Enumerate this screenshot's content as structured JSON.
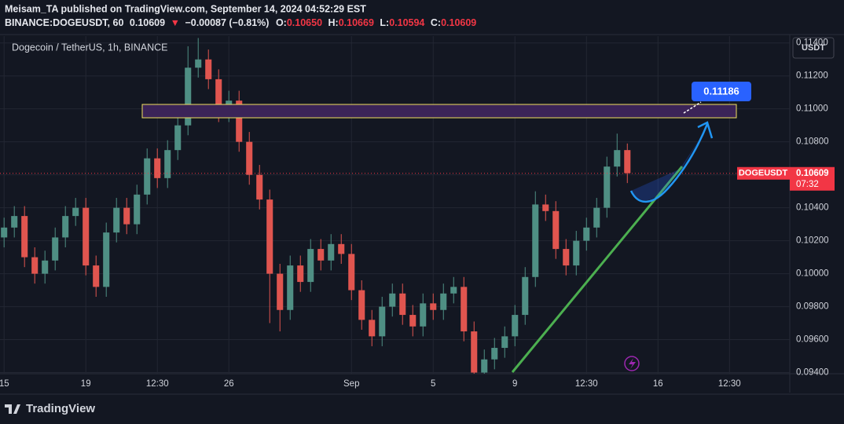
{
  "header": {
    "publisher": "Meisam_TA published on TradingView.com, September 14, 2024 04:52:29 EST",
    "symbol": "BINANCE:DOGEUSDT, 60",
    "price": "0.10609",
    "arrow": "▼",
    "change": "−0.00087 (−0.81%)",
    "open_label": "O:",
    "open": "0.10650",
    "high_label": "H:",
    "high": "0.10669",
    "low_label": "L:",
    "low": "0.10594",
    "close_label": "C:",
    "close": "0.10609"
  },
  "footer": {
    "logo": "TradingView"
  },
  "chart_data": {
    "type": "candlestick",
    "title": "Dogecoin / TetherUS, 1h, BINANCE",
    "currency": "USDT",
    "symbol_tag": "DOGEUSDT",
    "countdown": "07:32",
    "target_label": "0.11186",
    "last_price": {
      "value": 0.10609,
      "label": "0.10609"
    },
    "up_color": "#4f8f84",
    "down_color": "#e0554f",
    "grid": true,
    "xlim": [
      -0.4,
      76.9
    ],
    "ylim": [
      0.09393,
      0.11432
    ],
    "xticks": [
      {
        "value": 0,
        "label": "15"
      },
      {
        "value": 8,
        "label": "19"
      },
      {
        "value": 15,
        "label": "12:30"
      },
      {
        "value": 22,
        "label": "26"
      },
      {
        "value": 34,
        "label": "Sep"
      },
      {
        "value": 42,
        "label": "5"
      },
      {
        "value": 50,
        "label": "9"
      },
      {
        "value": 57,
        "label": "12:30"
      },
      {
        "value": 64,
        "label": "16"
      },
      {
        "value": 71,
        "label": "12:30"
      }
    ],
    "yticks": [
      {
        "value": 0.094,
        "label": "0.09400"
      },
      {
        "value": 0.096,
        "label": "0.09600"
      },
      {
        "value": 0.098,
        "label": "0.09800"
      },
      {
        "value": 0.1,
        "label": "0.10000"
      },
      {
        "value": 0.102,
        "label": "0.10200"
      },
      {
        "value": 0.104,
        "label": "0.10400"
      },
      {
        "value": 0.106,
        "label": "0.10600"
      },
      {
        "value": 0.108,
        "label": "0.10800"
      },
      {
        "value": 0.11,
        "label": "0.11000"
      },
      {
        "value": 0.112,
        "label": "0.11200"
      },
      {
        "value": 0.114,
        "label": "0.11400"
      }
    ],
    "open": [
      0.1022,
      0.1028,
      0.1035,
      0.101,
      0.1,
      0.1008,
      0.1022,
      0.1035,
      0.104,
      0.1005,
      0.0992,
      0.1025,
      0.104,
      0.103,
      0.1048,
      0.107,
      0.1058,
      0.1075,
      0.109,
      0.1125,
      0.113,
      0.1118,
      0.1098,
      0.1105,
      0.108,
      0.106,
      0.1045,
      0.1,
      0.0978,
      0.1005,
      0.0995,
      0.1015,
      0.1008,
      0.1018,
      0.1012,
      0.099,
      0.0972,
      0.0962,
      0.098,
      0.0988,
      0.0975,
      0.0968,
      0.0982,
      0.0978,
      0.0988,
      0.0992,
      0.0965,
      0.094,
      0.0948,
      0.0955,
      0.0962,
      0.0975,
      0.0998,
      0.1042,
      0.1038,
      0.1015,
      0.1005,
      0.102,
      0.1028,
      0.104,
      0.1065,
      0.1075
    ],
    "high": [
      0.1034,
      0.1041,
      0.1041,
      0.1016,
      0.1014,
      0.1028,
      0.1041,
      0.1046,
      0.1046,
      0.1011,
      0.1031,
      0.1046,
      0.1046,
      0.1054,
      0.1076,
      0.1076,
      0.1081,
      0.1096,
      0.1138,
      0.1143,
      0.1136,
      0.1124,
      0.1111,
      0.1111,
      0.1086,
      0.1066,
      0.1051,
      0.1006,
      0.1011,
      0.1011,
      0.1021,
      0.1021,
      0.1024,
      0.1024,
      0.1018,
      0.0996,
      0.0978,
      0.0986,
      0.0994,
      0.0994,
      0.0981,
      0.0988,
      0.0988,
      0.0994,
      0.0998,
      0.0998,
      0.0971,
      0.0954,
      0.0961,
      0.0968,
      0.0981,
      0.1004,
      0.105,
      0.1048,
      0.1044,
      0.1021,
      0.1026,
      0.1034,
      0.1046,
      0.1071,
      0.1085,
      0.1079
    ],
    "low": [
      0.1016,
      0.1022,
      0.1004,
      0.0994,
      0.0994,
      0.1002,
      0.1016,
      0.1029,
      0.0999,
      0.0986,
      0.0986,
      0.1019,
      0.1024,
      0.1024,
      0.1042,
      0.1052,
      0.1052,
      0.1069,
      0.1084,
      0.1119,
      0.1112,
      0.1092,
      0.1092,
      0.1074,
      0.1054,
      0.1039,
      0.097,
      0.0965,
      0.0972,
      0.0989,
      0.0989,
      0.1002,
      0.1002,
      0.1006,
      0.0984,
      0.0966,
      0.0956,
      0.0956,
      0.0974,
      0.0969,
      0.0962,
      0.0962,
      0.0972,
      0.0972,
      0.0982,
      0.0959,
      0.0936,
      0.0936,
      0.0942,
      0.0949,
      0.0956,
      0.0969,
      0.0992,
      0.1032,
      0.1009,
      0.0999,
      0.0999,
      0.1014,
      0.1022,
      0.1034,
      0.1059,
      0.1055
    ],
    "close": [
      0.1028,
      0.1035,
      0.101,
      0.1,
      0.1008,
      0.1022,
      0.1035,
      0.104,
      0.1005,
      0.0992,
      0.1025,
      0.104,
      0.103,
      0.1048,
      0.107,
      0.1058,
      0.1075,
      0.109,
      0.1125,
      0.113,
      0.1118,
      0.1098,
      0.1105,
      0.108,
      0.106,
      0.1045,
      0.1,
      0.0978,
      0.1005,
      0.0995,
      0.1015,
      0.1008,
      0.1018,
      0.1012,
      0.099,
      0.0972,
      0.0962,
      0.098,
      0.0988,
      0.0975,
      0.0968,
      0.0982,
      0.0978,
      0.0988,
      0.0992,
      0.0965,
      0.094,
      0.0948,
      0.0955,
      0.0962,
      0.0975,
      0.0998,
      0.1042,
      0.1038,
      0.1015,
      0.1005,
      0.102,
      0.1028,
      0.104,
      0.1065,
      0.1075,
      0.1061
    ]
  }
}
